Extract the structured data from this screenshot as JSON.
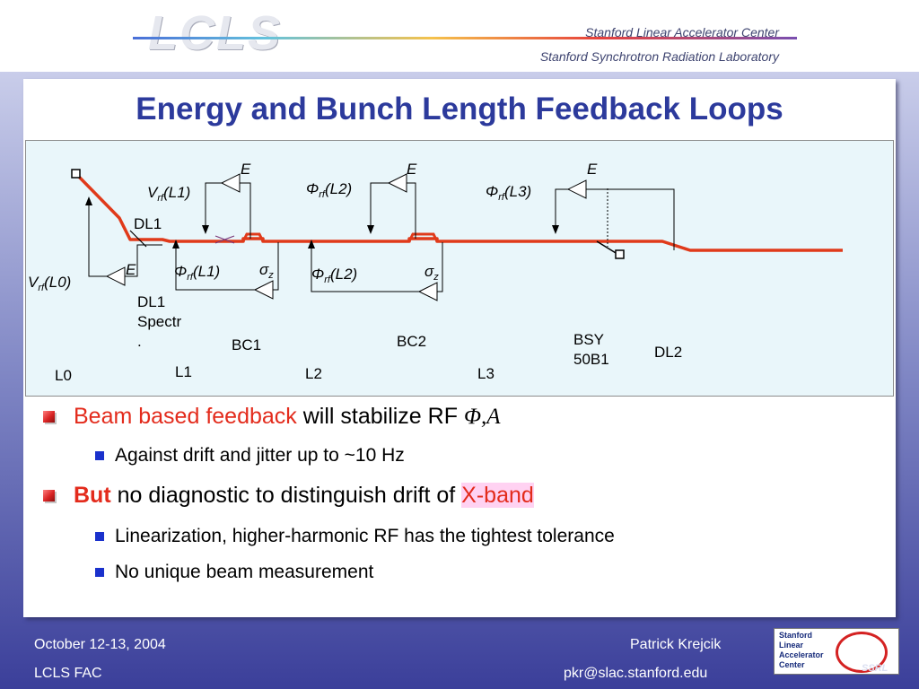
{
  "header": {
    "logo": "LCLS",
    "lab_line_1": "Stanford Linear Accelerator Center",
    "lab_line_2": "Stanford Synchrotron Radiation Laboratory"
  },
  "title": "Energy and Bunch Length Feedback Loops",
  "diagram": {
    "e": "E",
    "sigma": "σ",
    "sigma_sub": "z",
    "v": "V",
    "phi": "Φ",
    "rf": "rf",
    "v_l0_arg": "(L0)",
    "v_l1_arg": "(L1)",
    "phi_l1_arg": "(L1)",
    "phi_l2_arg": "(L2)",
    "phi_l3_arg": "(L3)",
    "dl1": "DL1",
    "dl1_spectr_1": "DL1",
    "dl1_spectr_2": "Spectr",
    "dl1_spectr_3": ".",
    "bc1": "BC1",
    "bc2": "BC2",
    "bsy_1": "BSY",
    "bsy_2": "50B1",
    "dl2": "DL2",
    "l0": "L0",
    "l1": "L1",
    "l2": "L2",
    "l3": "L3"
  },
  "bullets": {
    "b1_red": "Beam based feedback",
    "b1_rest": " will stabilize RF ",
    "b1_math": "Φ,A",
    "b1_sub": "Against drift and jitter up to ~10 Hz",
    "b2_red": "But",
    "b2_rest": " no diagnostic to distinguish drift of ",
    "b2_hl": "X-band",
    "b2_sub1": "Linearization, higher-harmonic RF has the tightest tolerance",
    "b2_sub2": "No unique beam measurement"
  },
  "footer": {
    "date": "October 12-13, 2004",
    "event": "LCLS FAC",
    "author": "Patrick Krejcik",
    "email": "pkr@slac.stanford.edu"
  },
  "badge": {
    "line1": "Stanford",
    "line2": "Linear",
    "line3": "Accelerator",
    "line4": "Center",
    "ssrl": "SSRL"
  }
}
